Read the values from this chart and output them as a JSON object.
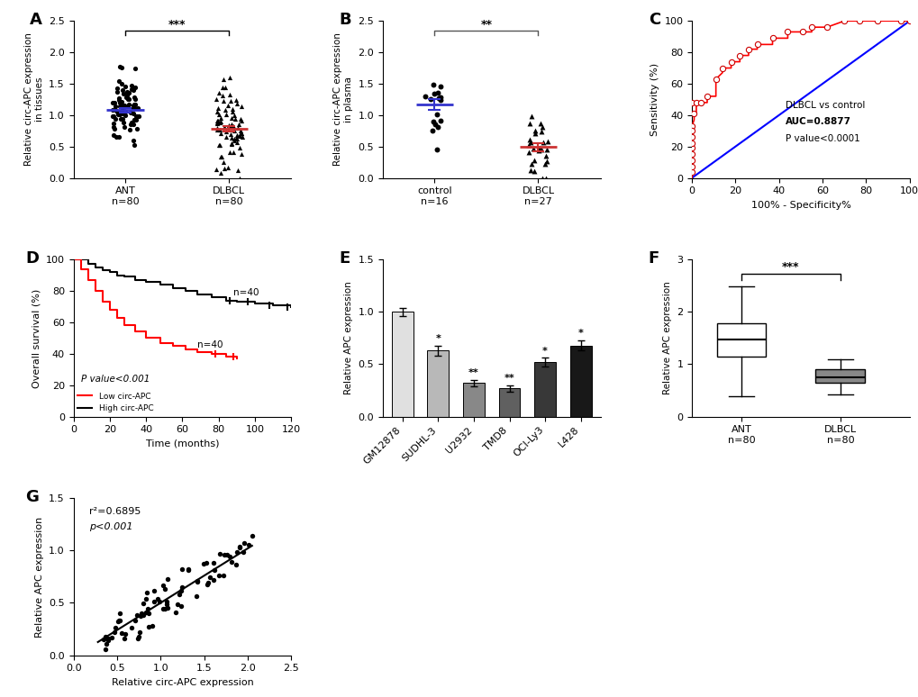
{
  "panel_A": {
    "label": "A",
    "ylabel": "Relative circ-APC expression\nin tissues",
    "group1_label": "ANT\nn=80",
    "group2_label": "DLBCL\nn=80",
    "group1_mean": 1.08,
    "group1_sem": 0.035,
    "group2_mean": 0.78,
    "group2_sem": 0.04,
    "ylim": [
      0,
      2.5
    ],
    "yticks": [
      0.0,
      0.5,
      1.0,
      1.5,
      2.0,
      2.5
    ],
    "sig_text": "***",
    "group1_color": "#3333cc",
    "group2_color": "#cc3333"
  },
  "panel_B": {
    "label": "B",
    "ylabel": "Relative circ-APC expression\nin plasma",
    "group1_label": "control\nn=16",
    "group2_label": "DLBCL\nn=27",
    "group1_mean": 1.17,
    "group1_sem": 0.08,
    "group2_mean": 0.49,
    "group2_sem": 0.06,
    "ylim": [
      0,
      2.5
    ],
    "yticks": [
      0.0,
      0.5,
      1.0,
      1.5,
      2.0,
      2.5
    ],
    "sig_text": "**",
    "group1_color": "#3333cc",
    "group2_color": "#cc3333"
  },
  "panel_C": {
    "label": "C",
    "xlabel": "100% - Specificity%",
    "ylabel": "Sensitivity (%)",
    "text_lines": [
      "DLBCL vs control",
      "AUC=0.8877",
      "P value<0.0001"
    ],
    "xlim": [
      0,
      100
    ],
    "ylim": [
      0,
      100
    ],
    "xticks": [
      0,
      20,
      40,
      60,
      80,
      100
    ],
    "yticks": [
      0,
      20,
      40,
      60,
      80,
      100
    ]
  },
  "panel_D": {
    "label": "D",
    "xlabel": "Time (months)",
    "ylabel": "Overall survival (%)",
    "xlim": [
      0,
      120
    ],
    "ylim": [
      0,
      100
    ],
    "xticks": [
      0,
      20,
      40,
      60,
      80,
      100,
      120
    ],
    "yticks": [
      0,
      20,
      40,
      60,
      80,
      100
    ],
    "sig_text": "P value<0.001",
    "low_label": "Low circ-APC",
    "high_label": "High circ-APC",
    "n_low": "n=40",
    "n_high": "n=40"
  },
  "panel_E": {
    "label": "E",
    "ylabel": "Relative APC expression",
    "categories": [
      "GM12878",
      "SUDHL-3",
      "U2932",
      "TMD8",
      "OCI-Ly3",
      "L428"
    ],
    "values": [
      1.0,
      0.63,
      0.32,
      0.27,
      0.52,
      0.68
    ],
    "colors": [
      "#e0e0e0",
      "#b8b8b8",
      "#888888",
      "#606060",
      "#383838",
      "#181818"
    ],
    "errs": [
      0.04,
      0.05,
      0.03,
      0.03,
      0.04,
      0.05
    ],
    "sig_labels": [
      "",
      "*",
      "**",
      "**",
      "*",
      "*"
    ],
    "ylim": [
      0,
      1.5
    ],
    "yticks": [
      0.0,
      0.5,
      1.0,
      1.5
    ]
  },
  "panel_F": {
    "label": "F",
    "ylabel": "Relative APC expression",
    "group1_label": "ANT\nn=80",
    "group2_label": "DLBCL\nn=80",
    "ylim": [
      0,
      3
    ],
    "yticks": [
      0,
      1,
      2,
      3
    ],
    "sig_text": "***"
  },
  "panel_G": {
    "label": "G",
    "xlabel": "Relative circ-APC expression",
    "ylabel": "Relative APC expression",
    "xlim": [
      0.0,
      2.5
    ],
    "ylim": [
      0.0,
      1.5
    ],
    "xticks": [
      0.0,
      0.5,
      1.0,
      1.5,
      2.0,
      2.5
    ],
    "yticks": [
      0.0,
      0.5,
      1.0,
      1.5
    ],
    "r2": "r²=0.6895",
    "pval": "p<0.001",
    "slope": 0.52,
    "intercept": -0.02
  }
}
